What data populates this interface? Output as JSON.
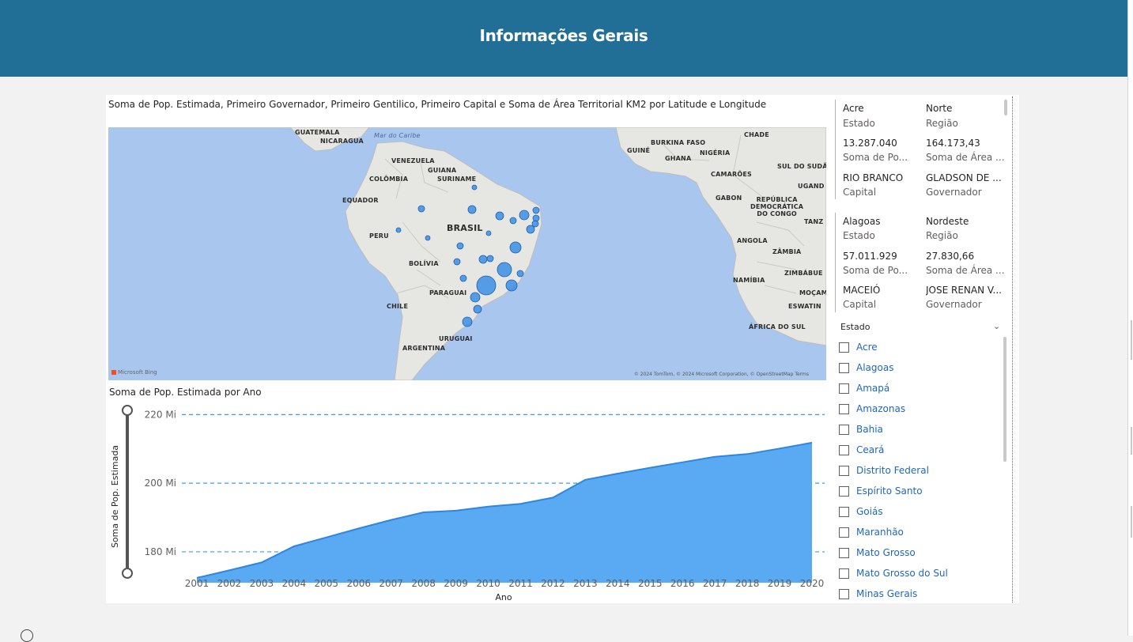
{
  "header": {
    "title": "Informações Gerais"
  },
  "map": {
    "title": "Soma de Pop. Estimada, Primeiro Governador, Primeiro Gentilico, Primeiro Capital e Soma de Área Territorial KM2 por Latitude e Longitude",
    "labels": {
      "guatemala": "GUATEMALA",
      "nicaragua": "NICARAGUA",
      "mar_caribe": "Mar do Caribe",
      "venezuela": "VENEZUELA",
      "guiana": "GUIANA",
      "suriname": "SURINAME",
      "colombia": "COLÔMBIA",
      "equador": "EQUADOR",
      "peru": "PERU",
      "brasil": "BRASIL",
      "bolivia": "BOLÍVIA",
      "paraguai": "PARAGUAI",
      "chile": "CHILE",
      "uruguai": "URUGUAI",
      "argentina": "ARGENTINA",
      "chade": "CHADE",
      "burkina": "BURKINA FASO",
      "guine": "GUINÉ",
      "nigeria": "NIGÉRIA",
      "gana": "GHANA",
      "sudao": "SUL DO SUDÃ",
      "camaroes": "CAMARÕES",
      "uganda": "UGAND",
      "gabao": "GABON",
      "congo": "REPÚBLICA\nDEMOCRÁTICA\nDO CONGO",
      "tanz": "TANZ",
      "angola": "ANGOLA",
      "zambia": "ZÂMBIA",
      "zimbabue": "ZIMBÁBUE",
      "namibia": "NAMÍBIA",
      "mocam": "MOÇAM",
      "eswatini": "ESWATIN",
      "africa_sul": "ÁFRICA DO SUL"
    },
    "attribution": "Microsoft Bing",
    "copyright": "© 2024 TomTom, © 2024 Microsoft Corporation, © OpenStreetMap  Terms",
    "bubble_color": "#3a8ee6"
  },
  "cards": [
    {
      "estado": "Acre",
      "estado_label": "Estado",
      "regiao": "Norte",
      "regiao_label": "Região",
      "pop": "13.287.040",
      "pop_label": "Soma de Po...",
      "area": "164.173,43",
      "area_label": "Soma de Área ...",
      "capital": "RIO BRANCO",
      "capital_label": "Capital",
      "governador": "GLADSON DE ...",
      "governador_label": "Governador"
    },
    {
      "estado": "Alagoas",
      "estado_label": "Estado",
      "regiao": "Nordeste",
      "regiao_label": "Região",
      "pop": "57.011.929",
      "pop_label": "Soma de Po...",
      "area": "27.830,66",
      "area_label": "Soma de Área ...",
      "capital": "MACEIÓ",
      "capital_label": "Capital",
      "governador": "JOSE RENAN V...",
      "governador_label": "Governador"
    }
  ],
  "slicer": {
    "title": "Estado",
    "items": [
      "Acre",
      "Alagoas",
      "Amapá",
      "Amazonas",
      "Bahia",
      "Ceará",
      "Distrito Federal",
      "Espírito Santo",
      "Goiás",
      "Maranhão",
      "Mato Grosso",
      "Mato Grosso do Sul",
      "Minas Gerais"
    ],
    "text_color": "#1e68b6"
  },
  "chart_title": "Soma de Pop. Estimada por Ano",
  "chart_data": {
    "type": "area",
    "title": "Soma de Pop. Estimada por Ano",
    "xlabel": "Ano",
    "ylabel": "Soma de Pop. Estimada",
    "categories": [
      "2001",
      "2002",
      "2003",
      "2004",
      "2005",
      "2006",
      "2007",
      "2008",
      "2009",
      "2010",
      "2011",
      "2012",
      "2013",
      "2014",
      "2015",
      "2016",
      "2017",
      "2018",
      "2019",
      "2020"
    ],
    "values": [
      172.4,
      174.6,
      176.9,
      181.6,
      184.2,
      186.8,
      189.3,
      191.5,
      192.0,
      193.2,
      194.0,
      195.8,
      201.0,
      202.8,
      204.5,
      206.1,
      207.7,
      208.5,
      210.1,
      211.8
    ],
    "y_ticks": [
      180,
      200,
      220
    ],
    "y_tick_labels": [
      "180 Mi",
      "200 Mi",
      "220 Mi"
    ],
    "ylim": [
      171.0,
      221.0
    ],
    "color": "#59aaf2",
    "line_color": "#2f86e0",
    "gridline_color": "#3a9ee6"
  }
}
